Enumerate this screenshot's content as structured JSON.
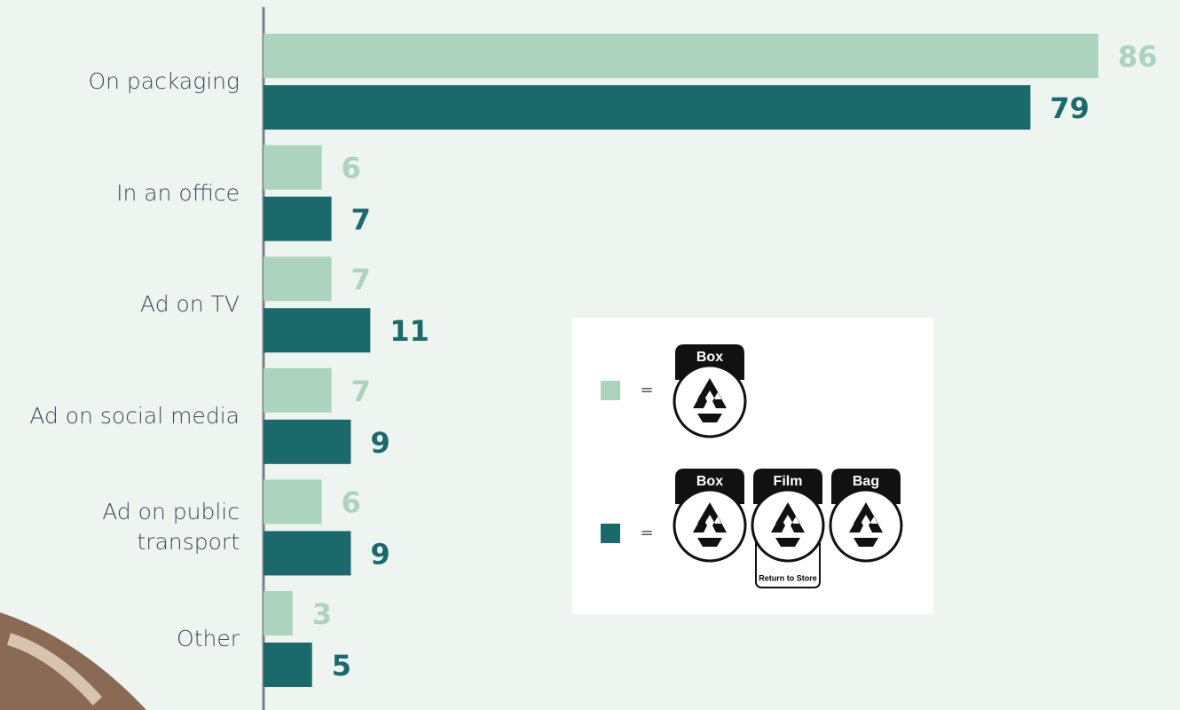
{
  "chart_data": {
    "type": "hbar",
    "categories": [
      "On packaging",
      "In an office",
      "Ad on TV",
      "Ad on social media",
      "Ad on public transport",
      "Other"
    ],
    "series": [
      {
        "color": "#acd3bd",
        "values": [
          86,
          6,
          7,
          7,
          6,
          3
        ]
      },
      {
        "color": "#1a6a6b",
        "values": [
          79,
          7,
          11,
          9,
          9,
          5
        ]
      }
    ],
    "legend": [
      {
        "label": "=",
        "icons": [
          "Box"
        ]
      },
      {
        "label": "=",
        "icons": [
          "Box",
          "Film",
          "Bag"
        ],
        "note": "Return to Store"
      }
    ]
  }
}
